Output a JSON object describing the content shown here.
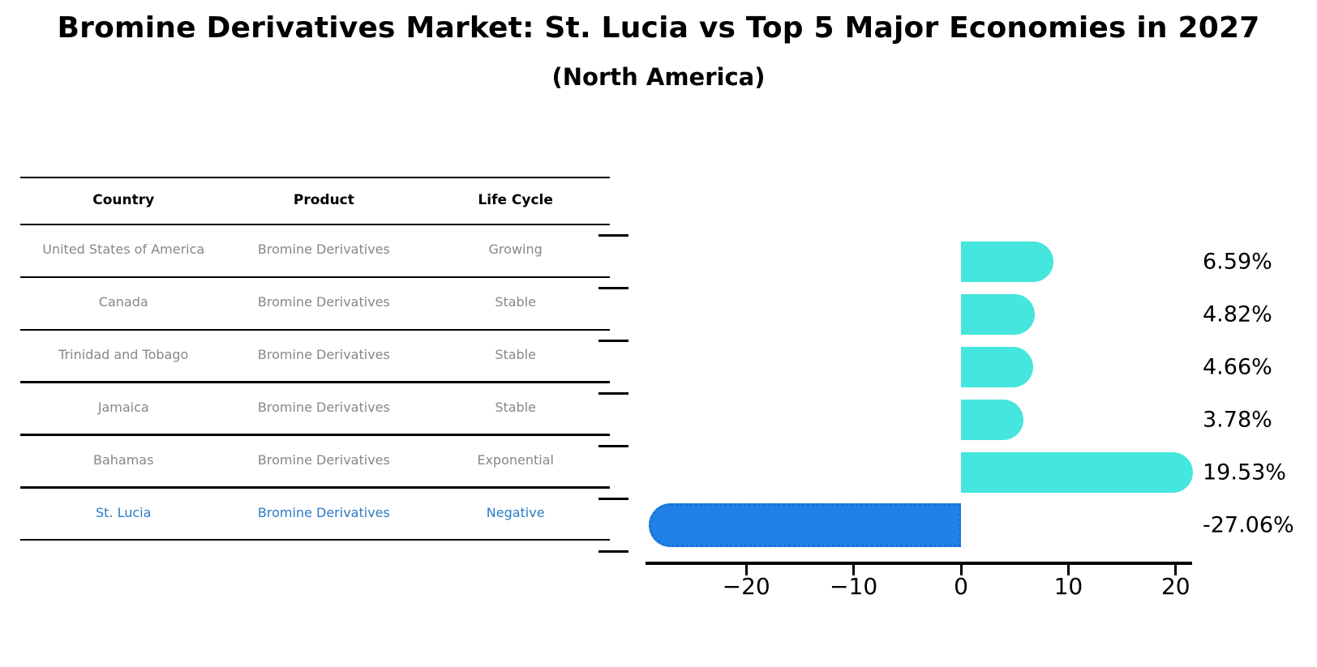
{
  "chart_data": {
    "type": "bar",
    "orientation": "horizontal",
    "title": "Bromine Derivatives Market: St. Lucia vs Top 5 Major Economies in 2027",
    "subtitle": "(North America)",
    "categories": [
      "United States of America",
      "Canada",
      "Trinidad and Tobago",
      "Jamaica",
      "Bahamas",
      "St. Lucia"
    ],
    "values": [
      6.59,
      4.82,
      4.66,
      3.78,
      19.53,
      -27.06
    ],
    "value_labels": [
      "6.59%",
      "4.82%",
      "4.66%",
      "3.78%",
      "19.53%",
      "-27.06%"
    ],
    "highlight_index": 5,
    "x_ticks": {
      "values": [
        -20,
        -10,
        0,
        10,
        20
      ],
      "labels": [
        "−20",
        "−10",
        "0",
        "10",
        "20"
      ]
    },
    "xlim": [
      -29.4,
      21.5
    ],
    "grid": false,
    "legend": "none",
    "colors": {
      "positive_bar": "#45e6dd",
      "negative_bar": "#2082e8",
      "negative_bar_border": "#1b6fd3",
      "axis": "#000000",
      "value_label": "#000000"
    }
  },
  "table": {
    "headers": [
      "Country",
      "Product",
      "Life Cycle"
    ],
    "rows": [
      {
        "country": "United States of America",
        "product": "Bromine Derivatives",
        "life_cycle": "Growing"
      },
      {
        "country": "Canada",
        "product": "Bromine Derivatives",
        "life_cycle": "Stable"
      },
      {
        "country": "Trinidad and Tobago",
        "product": "Bromine Derivatives",
        "life_cycle": "Stable"
      },
      {
        "country": "Jamaica",
        "product": "Bromine Derivatives",
        "life_cycle": "Stable"
      },
      {
        "country": "Bahamas",
        "product": "Bromine Derivatives",
        "life_cycle": "Exponential"
      },
      {
        "country": "St. Lucia",
        "product": "Bromine Derivatives",
        "life_cycle": "Negative"
      }
    ],
    "highlight_row_index": 5,
    "colors": {
      "header_text": "#000000",
      "row_text": "#878787",
      "highlight_text": "#2b7bc4",
      "rule": "#000000"
    }
  }
}
